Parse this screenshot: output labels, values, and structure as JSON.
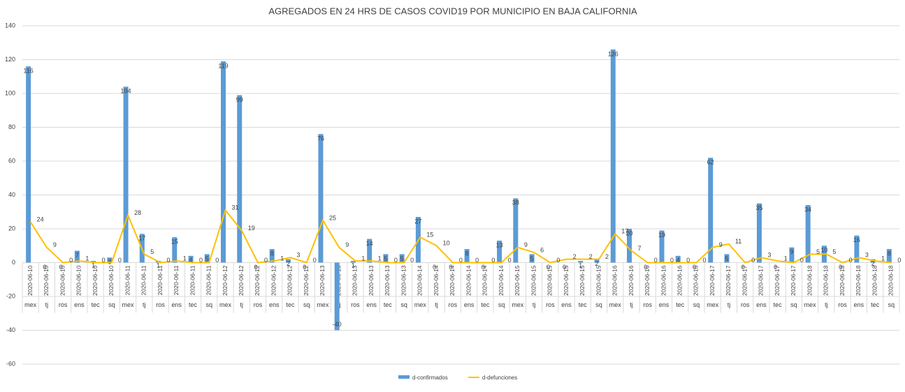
{
  "chart_data": {
    "type": "bar_line",
    "title": "AGREGADOS EN 24 HRS DE CASOS COVID19 POR MUNICIPIO EN BAJA CALIFORNIA",
    "categories": [
      "mex",
      "tj",
      "ros",
      "ens",
      "tec",
      "sq",
      "mex",
      "tj",
      "ros",
      "ens",
      "tec",
      "sq",
      "mex",
      "tj",
      "ros",
      "ens",
      "tec",
      "sq",
      "mex",
      "tj",
      "ros",
      "ens",
      "tec",
      "sq",
      "mex",
      "tj",
      "ros",
      "ens",
      "tec",
      "sq",
      "mex",
      "tj",
      "ros",
      "ens",
      "tec",
      "sq",
      "mex",
      "tj",
      "ros",
      "ens",
      "tec",
      "sq",
      "mex",
      "tj",
      "ros",
      "ens",
      "tec",
      "sq",
      "mex",
      "tj",
      "ros",
      "ens",
      "tec",
      "sq"
    ],
    "dates": [
      "2020-06-10",
      "2020-06-10",
      "2020-06-10",
      "2020-06-10",
      "2020-06-10",
      "2020-06-10",
      "2020-06-11",
      "2020-06-11",
      "2020-06-11",
      "2020-06-11",
      "2020-06-11",
      "2020-06-11",
      "2020-06-12",
      "2020-06-12",
      "2020-06-12",
      "2020-06-12",
      "2020-06-12",
      "2020-06-12",
      "2020-06-13",
      "2020-06-13",
      "2020-06-13",
      "2020-06-13",
      "2020-06-13",
      "2020-06-13",
      "2020-06-14",
      "2020-06-14",
      "2020-06-14",
      "2020-06-14",
      "2020-06-14",
      "2020-06-14",
      "2020-06-15",
      "2020-06-15",
      "2020-06-15",
      "2020-06-15",
      "2020-06-15",
      "2020-06-15",
      "2020-06-16",
      "2020-06-16",
      "2020-06-16",
      "2020-06-16",
      "2020-06-16",
      "2020-06-16",
      "2020-06-17",
      "2020-06-17",
      "2020-06-17",
      "2020-06-17",
      "2020-06-17",
      "2020-06-17",
      "2020-06-18",
      "2020-06-18",
      "2020-06-18",
      "2020-06-18",
      "2020-06-18",
      "2020-06-18"
    ],
    "series": [
      {
        "name": "d-confirmados",
        "kind": "bar",
        "color": "#5b9bd5",
        "values": [
          116,
          0,
          0,
          7,
          1,
          3,
          104,
          17,
          1,
          15,
          4,
          5,
          119,
          99,
          0,
          8,
          2,
          0,
          76,
          -40,
          1,
          14,
          5,
          5,
          27,
          0,
          0,
          8,
          0,
          13,
          38,
          5,
          0,
          0,
          1,
          2,
          126,
          20,
          0,
          19,
          4,
          0,
          62,
          5,
          0,
          35,
          0,
          9,
          34,
          10,
          0,
          16,
          2,
          8
        ]
      },
      {
        "name": "d-defunciones",
        "kind": "line",
        "color": "#ffc000",
        "values": [
          24,
          9,
          0,
          1,
          0,
          0,
          28,
          5,
          0,
          1,
          0,
          0,
          31,
          19,
          0,
          1,
          3,
          0,
          25,
          9,
          1,
          1,
          0,
          0,
          15,
          10,
          0,
          0,
          0,
          0,
          9,
          6,
          0,
          2,
          2,
          2,
          17,
          7,
          0,
          0,
          0,
          0,
          9,
          11,
          0,
          3,
          1,
          0,
          5,
          5,
          0,
          3,
          1,
          0
        ]
      }
    ],
    "ylim": [
      -60,
      140
    ],
    "yticks": [
      -60,
      -40,
      -20,
      0,
      20,
      40,
      60,
      80,
      100,
      120,
      140
    ],
    "grid": true
  }
}
